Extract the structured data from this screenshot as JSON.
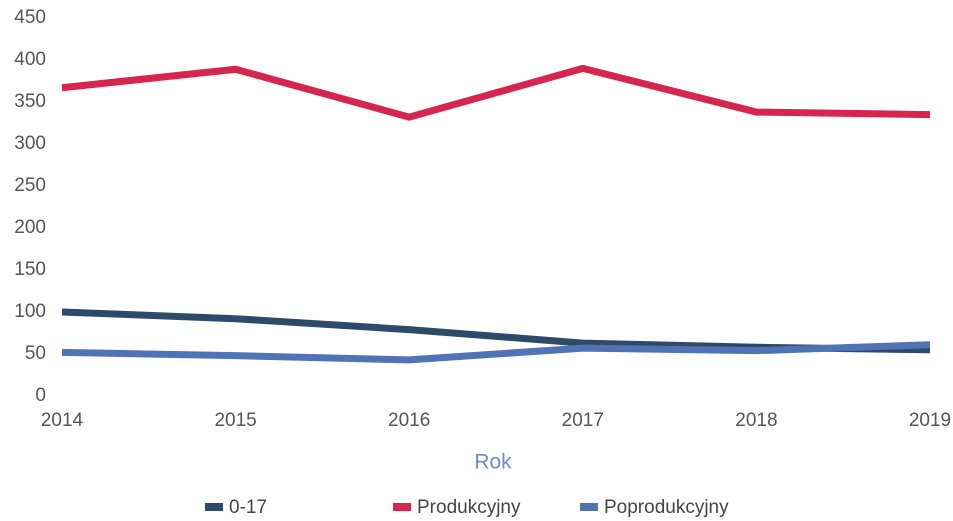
{
  "chart_data": {
    "type": "line",
    "x_label": "Rok",
    "x": [
      2014,
      2015,
      2016,
      2017,
      2018,
      2019
    ],
    "xlim": [
      2014,
      2019
    ],
    "xticks": [
      2014,
      2015,
      2016,
      2017,
      2018,
      2019
    ],
    "ylim": [
      0,
      450
    ],
    "yticks": [
      0,
      50,
      100,
      150,
      200,
      250,
      300,
      350,
      400,
      450
    ],
    "grid": false,
    "legend": "bottom",
    "series": [
      {
        "name": "0-17",
        "color": "#2e4a6b",
        "values": [
          100,
          92,
          79,
          63,
          58,
          55
        ]
      },
      {
        "name": "Produkcyjny",
        "color": "#d6264f",
        "values": [
          367,
          389,
          332,
          390,
          338,
          335
        ]
      },
      {
        "name": "Poprodukcyjny",
        "color": "#4f73b5",
        "values": [
          52,
          48,
          43,
          57,
          54,
          61
        ]
      }
    ]
  }
}
